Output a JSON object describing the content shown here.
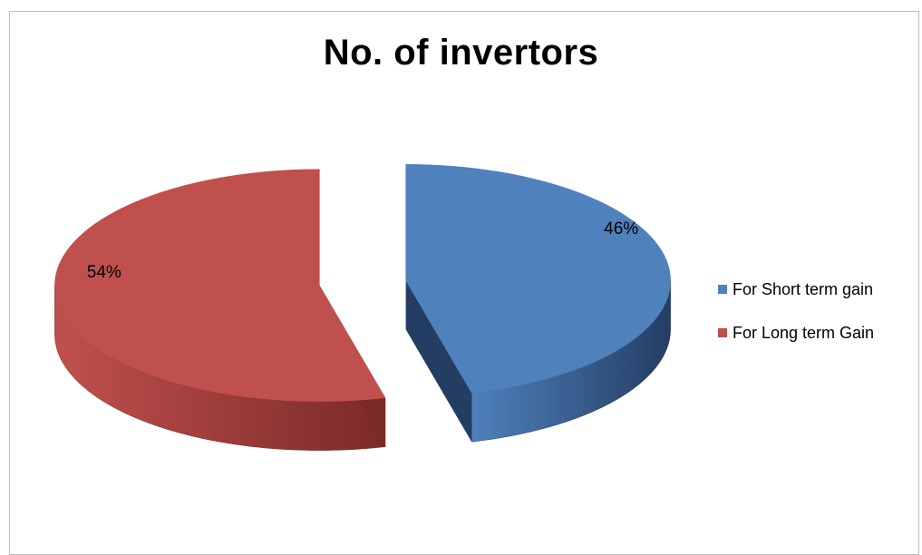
{
  "chart_data": {
    "type": "pie",
    "title": "No. of invertors",
    "slices": [
      {
        "name": "For Short term gain",
        "value": 46,
        "label": "46%",
        "color": "#4f81bd",
        "side_color": "#243d63"
      },
      {
        "name": "For Long term Gain",
        "value": 54,
        "label": "54%",
        "color": "#c0504d",
        "side_color": "#7a2a28"
      }
    ],
    "exploded": true,
    "style": "3d",
    "legend_position": "right"
  }
}
